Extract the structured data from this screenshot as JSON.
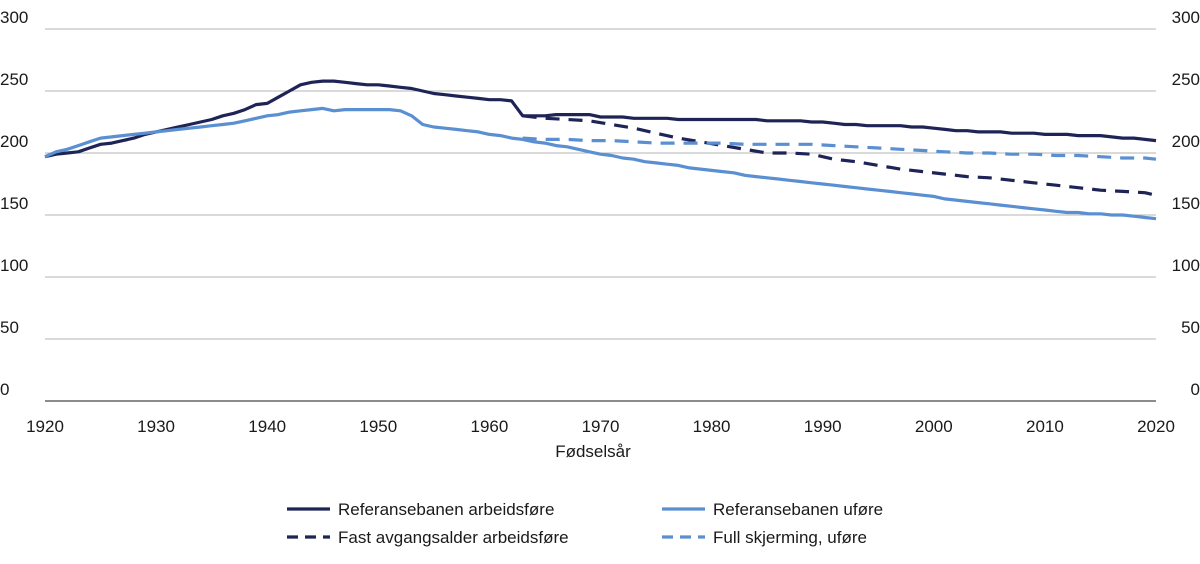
{
  "chart_data": {
    "type": "line",
    "xlabel": "Fødselsår",
    "ylabel": "",
    "xlim": [
      1920,
      2020
    ],
    "ylim": [
      0,
      300
    ],
    "xticks": [
      "1920",
      "1930",
      "1940",
      "1950",
      "1960",
      "1970",
      "1980",
      "1990",
      "2000",
      "2010",
      "2020"
    ],
    "yticks": [
      "0",
      "50",
      "100",
      "150",
      "200",
      "250",
      "300"
    ],
    "grid": "horizontal",
    "legend_position": "bottom",
    "colors": {
      "dark": "#1f2456",
      "light": "#5a8fd1",
      "grid": "#b5b5b5"
    },
    "series": [
      {
        "name": "Referansebanen arbeidsføre",
        "style": "solid",
        "color": "#1f2456",
        "points": [
          [
            1920,
            197
          ],
          [
            1921,
            199
          ],
          [
            1922,
            200
          ],
          [
            1923,
            201
          ],
          [
            1924,
            204
          ],
          [
            1925,
            207
          ],
          [
            1926,
            208
          ],
          [
            1927,
            210
          ],
          [
            1928,
            212
          ],
          [
            1929,
            215
          ],
          [
            1930,
            217
          ],
          [
            1931,
            219
          ],
          [
            1932,
            221
          ],
          [
            1933,
            223
          ],
          [
            1934,
            225
          ],
          [
            1935,
            227
          ],
          [
            1936,
            230
          ],
          [
            1937,
            232
          ],
          [
            1938,
            235
          ],
          [
            1939,
            239
          ],
          [
            1940,
            240
          ],
          [
            1941,
            245
          ],
          [
            1942,
            250
          ],
          [
            1943,
            255
          ],
          [
            1944,
            257
          ],
          [
            1945,
            258
          ],
          [
            1946,
            258
          ],
          [
            1947,
            257
          ],
          [
            1948,
            256
          ],
          [
            1949,
            255
          ],
          [
            1950,
            255
          ],
          [
            1951,
            254
          ],
          [
            1952,
            253
          ],
          [
            1953,
            252
          ],
          [
            1954,
            250
          ],
          [
            1955,
            248
          ],
          [
            1956,
            247
          ],
          [
            1957,
            246
          ],
          [
            1958,
            245
          ],
          [
            1959,
            244
          ],
          [
            1960,
            243
          ],
          [
            1961,
            243
          ],
          [
            1962,
            242
          ],
          [
            1963,
            230
          ],
          [
            1964,
            230
          ],
          [
            1965,
            230
          ],
          [
            1966,
            231
          ],
          [
            1967,
            231
          ],
          [
            1968,
            231
          ],
          [
            1969,
            231
          ],
          [
            1970,
            229
          ],
          [
            1971,
            229
          ],
          [
            1972,
            229
          ],
          [
            1973,
            228
          ],
          [
            1974,
            228
          ],
          [
            1975,
            228
          ],
          [
            1976,
            228
          ],
          [
            1977,
            227
          ],
          [
            1978,
            227
          ],
          [
            1979,
            227
          ],
          [
            1980,
            227
          ],
          [
            1981,
            227
          ],
          [
            1982,
            227
          ],
          [
            1983,
            227
          ],
          [
            1984,
            227
          ],
          [
            1985,
            226
          ],
          [
            1986,
            226
          ],
          [
            1987,
            226
          ],
          [
            1988,
            226
          ],
          [
            1989,
            225
          ],
          [
            1990,
            225
          ],
          [
            1991,
            224
          ],
          [
            1992,
            223
          ],
          [
            1993,
            223
          ],
          [
            1994,
            222
          ],
          [
            1995,
            222
          ],
          [
            1996,
            222
          ],
          [
            1997,
            222
          ],
          [
            1998,
            221
          ],
          [
            1999,
            221
          ],
          [
            2000,
            220
          ],
          [
            2001,
            219
          ],
          [
            2002,
            218
          ],
          [
            2003,
            218
          ],
          [
            2004,
            217
          ],
          [
            2005,
            217
          ],
          [
            2006,
            217
          ],
          [
            2007,
            216
          ],
          [
            2008,
            216
          ],
          [
            2009,
            216
          ],
          [
            2010,
            215
          ],
          [
            2011,
            215
          ],
          [
            2012,
            215
          ],
          [
            2013,
            214
          ],
          [
            2014,
            214
          ],
          [
            2015,
            214
          ],
          [
            2016,
            213
          ],
          [
            2017,
            212
          ],
          [
            2018,
            212
          ],
          [
            2019,
            211
          ],
          [
            2020,
            210
          ]
        ]
      },
      {
        "name": "Fast avgangsalder arbeidsføre",
        "style": "dashed",
        "color": "#1f2456",
        "points": [
          [
            1963,
            230
          ],
          [
            1965,
            228
          ],
          [
            1967,
            227
          ],
          [
            1969,
            226
          ],
          [
            1971,
            223
          ],
          [
            1973,
            220
          ],
          [
            1975,
            216
          ],
          [
            1977,
            212
          ],
          [
            1979,
            209
          ],
          [
            1981,
            206
          ],
          [
            1983,
            203
          ],
          [
            1985,
            200
          ],
          [
            1987,
            200
          ],
          [
            1989,
            199
          ],
          [
            1991,
            195
          ],
          [
            1993,
            193
          ],
          [
            1995,
            190
          ],
          [
            1997,
            187
          ],
          [
            1999,
            185
          ],
          [
            2001,
            183
          ],
          [
            2003,
            181
          ],
          [
            2005,
            180
          ],
          [
            2007,
            178
          ],
          [
            2009,
            176
          ],
          [
            2011,
            174
          ],
          [
            2013,
            172
          ],
          [
            2015,
            170
          ],
          [
            2017,
            169
          ],
          [
            2019,
            168
          ],
          [
            2020,
            166
          ]
        ]
      },
      {
        "name": "Referansebanen uføre",
        "style": "solid",
        "color": "#5a8fd1",
        "points": [
          [
            1920,
            197
          ],
          [
            1921,
            201
          ],
          [
            1922,
            203
          ],
          [
            1923,
            206
          ],
          [
            1924,
            209
          ],
          [
            1925,
            212
          ],
          [
            1926,
            213
          ],
          [
            1927,
            214
          ],
          [
            1928,
            215
          ],
          [
            1929,
            216
          ],
          [
            1930,
            217
          ],
          [
            1931,
            218
          ],
          [
            1932,
            219
          ],
          [
            1933,
            220
          ],
          [
            1934,
            221
          ],
          [
            1935,
            222
          ],
          [
            1936,
            223
          ],
          [
            1937,
            224
          ],
          [
            1938,
            226
          ],
          [
            1939,
            228
          ],
          [
            1940,
            230
          ],
          [
            1941,
            231
          ],
          [
            1942,
            233
          ],
          [
            1943,
            234
          ],
          [
            1944,
            235
          ],
          [
            1945,
            236
          ],
          [
            1946,
            234
          ],
          [
            1947,
            235
          ],
          [
            1948,
            235
          ],
          [
            1949,
            235
          ],
          [
            1950,
            235
          ],
          [
            1951,
            235
          ],
          [
            1952,
            234
          ],
          [
            1953,
            230
          ],
          [
            1954,
            223
          ],
          [
            1955,
            221
          ],
          [
            1956,
            220
          ],
          [
            1957,
            219
          ],
          [
            1958,
            218
          ],
          [
            1959,
            217
          ],
          [
            1960,
            215
          ],
          [
            1961,
            214
          ],
          [
            1962,
            212
          ],
          [
            1963,
            211
          ],
          [
            1964,
            209
          ],
          [
            1965,
            208
          ],
          [
            1966,
            206
          ],
          [
            1967,
            205
          ],
          [
            1968,
            203
          ],
          [
            1969,
            201
          ],
          [
            1970,
            199
          ],
          [
            1971,
            198
          ],
          [
            1972,
            196
          ],
          [
            1973,
            195
          ],
          [
            1974,
            193
          ],
          [
            1975,
            192
          ],
          [
            1976,
            191
          ],
          [
            1977,
            190
          ],
          [
            1978,
            188
          ],
          [
            1979,
            187
          ],
          [
            1980,
            186
          ],
          [
            1981,
            185
          ],
          [
            1982,
            184
          ],
          [
            1983,
            182
          ],
          [
            1984,
            181
          ],
          [
            1985,
            180
          ],
          [
            1986,
            179
          ],
          [
            1987,
            178
          ],
          [
            1988,
            177
          ],
          [
            1989,
            176
          ],
          [
            1990,
            175
          ],
          [
            1991,
            174
          ],
          [
            1992,
            173
          ],
          [
            1993,
            172
          ],
          [
            1994,
            171
          ],
          [
            1995,
            170
          ],
          [
            1996,
            169
          ],
          [
            1997,
            168
          ],
          [
            1998,
            167
          ],
          [
            1999,
            166
          ],
          [
            2000,
            165
          ],
          [
            2001,
            163
          ],
          [
            2002,
            162
          ],
          [
            2003,
            161
          ],
          [
            2004,
            160
          ],
          [
            2005,
            159
          ],
          [
            2006,
            158
          ],
          [
            2007,
            157
          ],
          [
            2008,
            156
          ],
          [
            2009,
            155
          ],
          [
            2010,
            154
          ],
          [
            2011,
            153
          ],
          [
            2012,
            152
          ],
          [
            2013,
            152
          ],
          [
            2014,
            151
          ],
          [
            2015,
            151
          ],
          [
            2016,
            150
          ],
          [
            2017,
            150
          ],
          [
            2018,
            149
          ],
          [
            2019,
            148
          ],
          [
            2020,
            147
          ]
        ]
      },
      {
        "name": "Full skjerming, uføre",
        "style": "dashed",
        "color": "#5a8fd1",
        "points": [
          [
            1963,
            212
          ],
          [
            1965,
            211
          ],
          [
            1967,
            211
          ],
          [
            1969,
            210
          ],
          [
            1971,
            210
          ],
          [
            1973,
            209
          ],
          [
            1975,
            208
          ],
          [
            1977,
            208
          ],
          [
            1979,
            208
          ],
          [
            1981,
            208
          ],
          [
            1983,
            207
          ],
          [
            1985,
            207
          ],
          [
            1987,
            207
          ],
          [
            1989,
            207
          ],
          [
            1991,
            206
          ],
          [
            1993,
            205
          ],
          [
            1995,
            204
          ],
          [
            1997,
            203
          ],
          [
            1999,
            202
          ],
          [
            2001,
            201
          ],
          [
            2003,
            200
          ],
          [
            2005,
            200
          ],
          [
            2007,
            199
          ],
          [
            2009,
            199
          ],
          [
            2011,
            198
          ],
          [
            2013,
            198
          ],
          [
            2015,
            197
          ],
          [
            2017,
            196
          ],
          [
            2019,
            196
          ],
          [
            2020,
            195
          ]
        ]
      }
    ]
  }
}
